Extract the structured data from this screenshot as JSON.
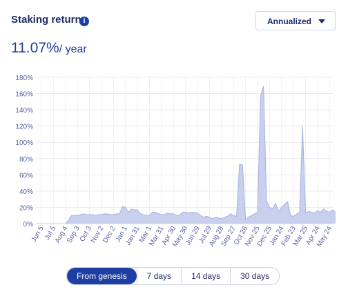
{
  "header": {
    "title": "Staking return",
    "dropdown": "Annualized"
  },
  "summary": {
    "value": "11.07%",
    "unit": "/ year"
  },
  "chart_data": {
    "type": "area",
    "color": "#c3cbec",
    "categories": [
      "Jun 5",
      null,
      null,
      null,
      "Jul 5",
      null,
      null,
      null,
      "Aug 4",
      null,
      null,
      null,
      "Sep 3",
      null,
      null,
      null,
      "Oct 3",
      null,
      null,
      null,
      "Nov 2",
      null,
      null,
      null,
      "Dec 2",
      null,
      null,
      null,
      "Jan 1",
      null,
      null,
      null,
      "Jan 31",
      null,
      null,
      null,
      "Mar 1",
      null,
      null,
      null,
      "Mar 31",
      null,
      null,
      null,
      "Apr 30",
      null,
      null,
      null,
      "May 30",
      null,
      null,
      null,
      "Jun 29",
      null,
      null,
      null,
      "Jul 29",
      null,
      null,
      null,
      "Aug 28",
      null,
      null,
      null,
      "Sep 27",
      null,
      null,
      null,
      "Oct 26",
      null,
      null,
      null,
      "Nov 25",
      null,
      null,
      null,
      "Dec 25",
      null,
      null,
      null,
      "Jan 24",
      null,
      null,
      null,
      "Feb 23",
      null,
      null,
      null,
      "Mar 25",
      null,
      null,
      null,
      "Apr 24",
      null,
      null,
      null,
      "May 24",
      null,
      null
    ],
    "values": [
      0,
      0,
      0,
      0,
      0,
      0,
      0,
      0,
      0,
      4,
      10,
      10,
      10,
      11,
      12,
      11,
      11,
      11,
      10,
      11,
      11,
      12,
      12,
      11,
      11,
      12,
      12,
      21,
      20,
      14,
      18,
      17,
      17,
      12,
      11,
      10,
      10,
      14,
      14,
      12,
      11,
      11,
      13,
      12,
      12,
      10,
      10,
      14,
      14,
      13,
      14,
      14,
      13,
      10,
      8,
      9,
      8,
      6,
      8,
      7,
      6,
      8,
      9,
      12,
      10,
      9,
      73,
      72,
      5,
      8,
      10,
      12,
      14,
      157,
      169,
      28,
      20,
      18,
      25,
      15,
      20,
      24,
      27,
      10,
      9,
      12,
      14,
      120,
      13,
      15,
      14,
      13,
      16,
      14,
      18,
      15,
      14,
      17,
      14
    ],
    "ylim": [
      0,
      180
    ],
    "yticks": [
      {
        "value": 0,
        "label": "0%"
      },
      {
        "value": 20,
        "label": "20%"
      },
      {
        "value": 40,
        "label": "40%"
      },
      {
        "value": 60,
        "label": "60%"
      },
      {
        "value": 80,
        "label": "80%"
      },
      {
        "value": 100,
        "label": "100%"
      },
      {
        "value": 120,
        "label": "120%"
      },
      {
        "value": 140,
        "label": "140%"
      },
      {
        "value": 160,
        "label": "160%"
      },
      {
        "value": 180,
        "label": "180%"
      }
    ],
    "grid": true
  },
  "tabs": [
    "From genesis",
    "7 days",
    "14 days",
    "30 days"
  ],
  "active_tab": 0
}
